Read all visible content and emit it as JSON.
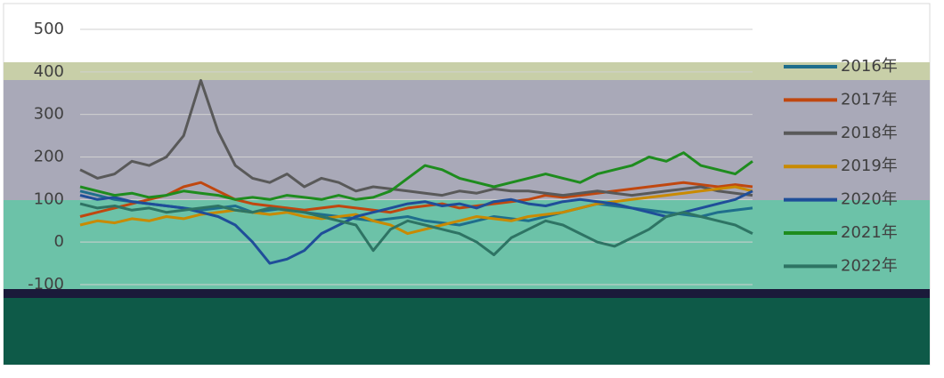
{
  "chart_data": {
    "type": "line",
    "categories": [
      null,
      null,
      null,
      null,
      null,
      null,
      null,
      null,
      null,
      null,
      null,
      null,
      null,
      null,
      null,
      null,
      null,
      null,
      null,
      null,
      null,
      null,
      null,
      null,
      null,
      null,
      null,
      null,
      null,
      null,
      null,
      null,
      null,
      null,
      null,
      null,
      null,
      null,
      null,
      null
    ],
    "series": [
      {
        "name": "2016年",
        "color": "#1f6e8c",
        "values": [
          120,
          110,
          100,
          95,
          90,
          85,
          80,
          75,
          80,
          85,
          70,
          75,
          80,
          70,
          65,
          60,
          55,
          50,
          55,
          60,
          50,
          45,
          40,
          50,
          60,
          55,
          50,
          60,
          70,
          80,
          90,
          85,
          80,
          75,
          70,
          65,
          60,
          70,
          75,
          80
        ]
      },
      {
        "name": "2017年",
        "color": "#c0470f",
        "values": [
          60,
          70,
          80,
          90,
          100,
          110,
          130,
          140,
          120,
          100,
          90,
          85,
          80,
          75,
          80,
          85,
          80,
          75,
          70,
          80,
          85,
          90,
          80,
          85,
          90,
          95,
          100,
          110,
          105,
          110,
          115,
          120,
          125,
          130,
          135,
          140,
          135,
          130,
          135,
          130
        ]
      },
      {
        "name": "2018年",
        "color": "#595959",
        "values": [
          170,
          150,
          160,
          190,
          180,
          200,
          250,
          380,
          260,
          180,
          150,
          140,
          160,
          130,
          150,
          140,
          120,
          130,
          125,
          120,
          115,
          110,
          120,
          115,
          125,
          120,
          120,
          115,
          110,
          115,
          120,
          115,
          110,
          115,
          120,
          125,
          130,
          120,
          115,
          110
        ]
      },
      {
        "name": "2019年",
        "color": "#c98a00",
        "values": [
          40,
          50,
          45,
          55,
          50,
          60,
          55,
          65,
          70,
          75,
          70,
          65,
          70,
          60,
          55,
          60,
          65,
          50,
          40,
          20,
          30,
          40,
          50,
          60,
          55,
          50,
          60,
          65,
          70,
          80,
          90,
          95,
          100,
          105,
          110,
          115,
          120,
          125,
          130,
          120
        ]
      },
      {
        "name": "2020年",
        "color": "#1f4e99",
        "values": [
          110,
          100,
          105,
          95,
          90,
          85,
          80,
          70,
          60,
          40,
          0,
          -50,
          -40,
          -20,
          20,
          40,
          60,
          70,
          80,
          90,
          95,
          85,
          90,
          80,
          95,
          100,
          90,
          85,
          95,
          100,
          95,
          90,
          80,
          70,
          60,
          70,
          80,
          90,
          100,
          120
        ]
      },
      {
        "name": "2021年",
        "color": "#1e8c1e",
        "values": [
          130,
          120,
          110,
          115,
          105,
          110,
          120,
          115,
          110,
          100,
          105,
          100,
          110,
          105,
          100,
          110,
          100,
          105,
          120,
          150,
          180,
          170,
          150,
          140,
          130,
          140,
          150,
          160,
          150,
          140,
          160,
          170,
          180,
          200,
          190,
          210,
          180,
          170,
          160,
          190
        ]
      },
      {
        "name": "2022年",
        "color": "#2e7464",
        "values": [
          90,
          80,
          85,
          75,
          80,
          70,
          75,
          80,
          85,
          75,
          70,
          80,
          75,
          70,
          60,
          50,
          40,
          -20,
          30,
          50,
          40,
          30,
          20,
          0,
          -30,
          10,
          30,
          50,
          40,
          20,
          0,
          -10,
          10,
          30,
          60,
          70,
          60,
          50,
          40,
          20
        ]
      }
    ],
    "ylim": [
      -100,
      500
    ],
    "yticks": [
      -100,
      0,
      100,
      200,
      300,
      400,
      500
    ],
    "grid": true,
    "legend": "right"
  }
}
